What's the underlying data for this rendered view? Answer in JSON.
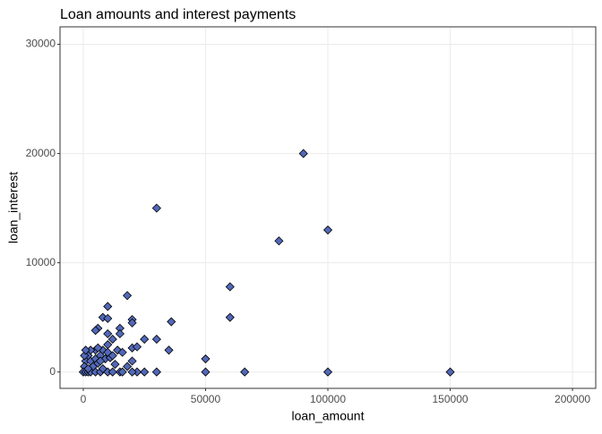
{
  "chart_data": {
    "type": "scatter",
    "title": "Loan amounts and interest payments",
    "x_label": "loan_amount",
    "y_label": "loan_interest",
    "xlim": [
      -9500,
      209500
    ],
    "ylim": [
      -1500,
      31600
    ],
    "xticks": [
      0,
      50000,
      100000,
      150000,
      200000
    ],
    "yticks": [
      0,
      10000,
      20000,
      30000
    ],
    "grid": true,
    "color": "#5168b8",
    "edge_color": "#000000",
    "x": [
      90000,
      30000,
      100000,
      80000,
      60000,
      60000,
      18000,
      10000,
      20000,
      20000,
      36000,
      8000,
      10000,
      6000,
      5000,
      30000,
      25000,
      35000,
      50000,
      50000,
      66000,
      100000,
      150000,
      30000,
      25000,
      22000,
      20000,
      15000,
      20000,
      22000,
      15000,
      15000,
      10000,
      12000,
      20000,
      14000,
      16000,
      10000,
      8000,
      5000,
      3000,
      2000,
      1000,
      500,
      0,
      1000,
      2000,
      3000,
      5000,
      7000,
      10000,
      12000,
      3000,
      5000,
      7000,
      9000,
      11000,
      4000,
      6000,
      8000,
      13000,
      2000,
      500,
      1000,
      6000,
      7000,
      10000,
      12000,
      16000,
      18000
    ],
    "y": [
      20000,
      15000,
      13000,
      12000,
      7800,
      5000,
      7000,
      6000,
      4800,
      4500,
      4600,
      5000,
      4900,
      4000,
      3800,
      3000,
      3000,
      2000,
      1200,
      0,
      0,
      0,
      0,
      0,
      0,
      0,
      0,
      0,
      2200,
      2300,
      4000,
      3500,
      3500,
      3000,
      1000,
      2000,
      1800,
      2500,
      2000,
      2000,
      2000,
      1500,
      1000,
      500,
      0,
      0,
      0,
      0,
      0,
      0,
      0,
      0,
      1000,
      1200,
      1500,
      1200,
      1300,
      500,
      800,
      300,
      700,
      300,
      1500,
      2000,
      2200,
      1000,
      1800,
      1500,
      0,
      500
    ]
  }
}
